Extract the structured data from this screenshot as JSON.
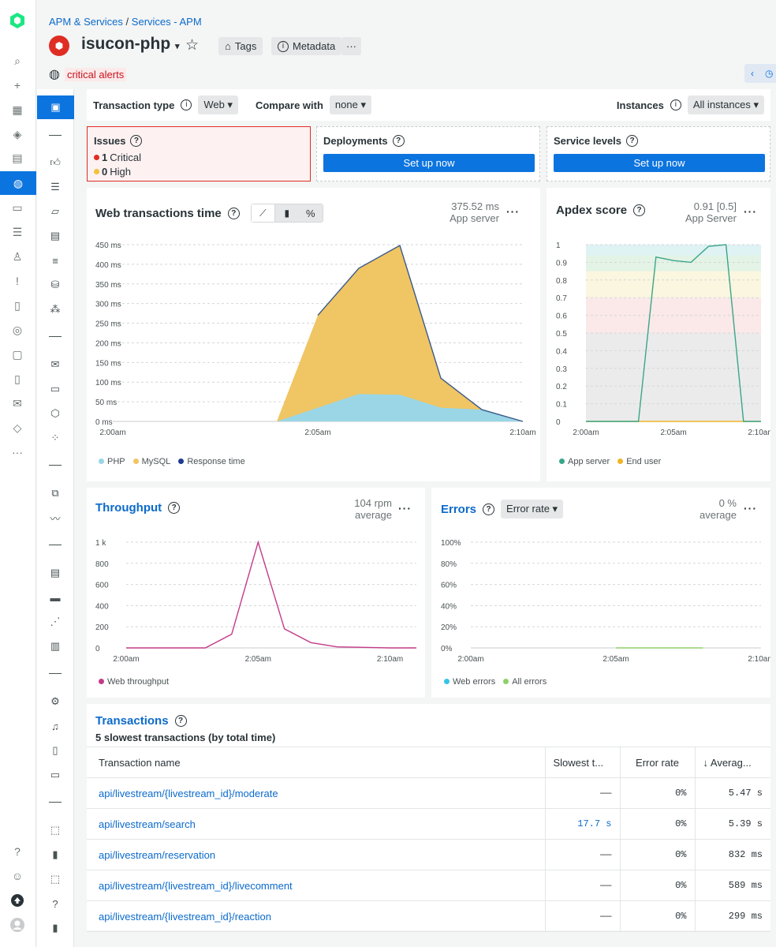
{
  "breadcrumb": {
    "root": "APM & Services",
    "sep": "/",
    "current": "Services - APM"
  },
  "entity": {
    "name": "isucon-php",
    "tags_label": "Tags",
    "metadata_label": "Metadata",
    "more_label": "···",
    "alert_status": "critical alerts"
  },
  "filters": {
    "transaction_type_label": "Transaction type",
    "transaction_type_value": "Web",
    "compare_label": "Compare with",
    "compare_value": "none",
    "instances_label": "Instances",
    "instances_value": "All instances"
  },
  "issues": {
    "title": "Issues",
    "critical_count": "1",
    "critical_label": "Critical",
    "high_count": "0",
    "high_label": "High"
  },
  "deployments": {
    "title": "Deployments",
    "button": "Set up now"
  },
  "service_levels": {
    "title": "Service levels",
    "button": "Set up now"
  },
  "web_tx": {
    "title": "Web transactions time",
    "stat_value": "375.52 ms",
    "stat_label": "App server",
    "legend": [
      "PHP",
      "MySQL",
      "Response time"
    ]
  },
  "apdex": {
    "title": "Apdex score",
    "stat_value": "0.91 [0.5]",
    "stat_label": "App Server",
    "legend": [
      "App server",
      "End user"
    ]
  },
  "throughput": {
    "title": "Throughput",
    "stat_value": "104 rpm",
    "stat_label": "average",
    "legend": [
      "Web throughput"
    ]
  },
  "errors": {
    "title": "Errors",
    "selector": "Error rate",
    "stat_value": "0 %",
    "stat_label": "average",
    "legend": [
      "Web errors",
      "All errors"
    ]
  },
  "transactions": {
    "title": "Transactions",
    "subtitle": "5 slowest transactions (by total time)",
    "columns": [
      "Transaction name",
      "Slowest t...",
      "Error rate",
      "↓ Averag..."
    ],
    "rows": [
      {
        "name": "api/livestream/{livestream_id}/moderate",
        "slowest": "——",
        "error": "0%",
        "avg": "5.47 s"
      },
      {
        "name": "api/livestream/search",
        "slowest": "17.7 s",
        "error": "0%",
        "avg": "5.39 s"
      },
      {
        "name": "api/livestream/reservation",
        "slowest": "——",
        "error": "0%",
        "avg": "832 ms"
      },
      {
        "name": "api/livestream/{livestream_id}/livecomment",
        "slowest": "——",
        "error": "0%",
        "avg": "589 ms"
      },
      {
        "name": "api/livestream/{livestream_id}/reaction",
        "slowest": "——",
        "error": "0%",
        "avg": "299 ms"
      }
    ]
  },
  "colors": {
    "accent": "#0c74df",
    "critical": "#df2d24",
    "php": "#9ad6e6",
    "mysql": "#f0c563",
    "response": "#3b5a8a",
    "apdex_line": "#3aa58a",
    "throughput": "#c43b8a",
    "errors_line": "#8fd06a"
  },
  "chart_data": [
    {
      "type": "area",
      "title": "Web transactions time",
      "x": [
        "2:00am",
        "2:01am",
        "2:02am",
        "2:03am",
        "2:04am",
        "2:05am",
        "2:06am",
        "2:07am",
        "2:08am",
        "2:09am",
        "2:10am"
      ],
      "xticks": [
        "2:00am",
        "2:05am",
        "2:10am"
      ],
      "yticks": [
        "0 ms",
        "50 ms",
        "100 ms",
        "150 ms",
        "200 ms",
        "250 ms",
        "300 ms",
        "350 ms",
        "400 ms",
        "450 ms"
      ],
      "ylim": [
        0,
        450
      ],
      "series": [
        {
          "name": "PHP",
          "values": [
            0,
            0,
            0,
            0,
            0,
            35,
            70,
            68,
            35,
            30,
            0
          ]
        },
        {
          "name": "MySQL",
          "values": [
            0,
            0,
            0,
            0,
            0,
            235,
            320,
            380,
            75,
            0,
            0
          ]
        },
        {
          "name": "Response time",
          "values": [
            0,
            0,
            0,
            0,
            0,
            270,
            390,
            448,
            110,
            30,
            0
          ]
        }
      ]
    },
    {
      "type": "line",
      "title": "Apdex score",
      "x": [
        "2:00am",
        "2:01am",
        "2:02am",
        "2:03am",
        "2:04am",
        "2:05am",
        "2:06am",
        "2:07am",
        "2:08am",
        "2:09am",
        "2:10am"
      ],
      "xticks": [
        "2:00am",
        "2:05am",
        "2:10am"
      ],
      "yticks": [
        "0",
        "0.1",
        "0.2",
        "0.3",
        "0.4",
        "0.5",
        "0.6",
        "0.7",
        "0.8",
        "0.9",
        "1"
      ],
      "ylim": [
        0,
        1
      ],
      "series": [
        {
          "name": "App server",
          "values": [
            0,
            0,
            0,
            0,
            0.93,
            0.91,
            0.9,
            0.99,
            1.0,
            0,
            0
          ]
        },
        {
          "name": "End user",
          "values": [
            0,
            0,
            0,
            0,
            0,
            0,
            0,
            0,
            0,
            0,
            0
          ]
        }
      ]
    },
    {
      "type": "line",
      "title": "Throughput",
      "x": [
        "2:00am",
        "2:01am",
        "2:02am",
        "2:03am",
        "2:04am",
        "2:05am",
        "2:06am",
        "2:07am",
        "2:08am",
        "2:09am",
        "2:10am",
        "2:11am"
      ],
      "xticks": [
        "2:00am",
        "2:05am",
        "2:10am"
      ],
      "yticks": [
        "0",
        "200",
        "400",
        "600",
        "800",
        "1 k"
      ],
      "ylim": [
        0,
        1000
      ],
      "series": [
        {
          "name": "Web throughput",
          "values": [
            0,
            0,
            0,
            0,
            130,
            1000,
            180,
            50,
            10,
            5,
            0,
            0
          ]
        }
      ]
    },
    {
      "type": "line",
      "title": "Errors",
      "x": [
        "2:00am",
        "2:01am",
        "2:02am",
        "2:03am",
        "2:04am",
        "2:05am",
        "2:06am",
        "2:07am",
        "2:08am",
        "2:09am",
        "2:10am"
      ],
      "xticks": [
        "2:00am",
        "2:05am",
        "2:10am"
      ],
      "yticks": [
        "0%",
        "20%",
        "40%",
        "60%",
        "80%",
        "100%"
      ],
      "ylim": [
        0,
        100
      ],
      "series": [
        {
          "name": "Web errors",
          "values": [
            0,
            0,
            0,
            0,
            0,
            0,
            0,
            0,
            0,
            0,
            0
          ]
        },
        {
          "name": "All errors",
          "values": [
            0,
            0,
            0,
            0,
            0,
            0,
            0,
            0,
            0,
            0,
            0
          ]
        }
      ]
    }
  ]
}
